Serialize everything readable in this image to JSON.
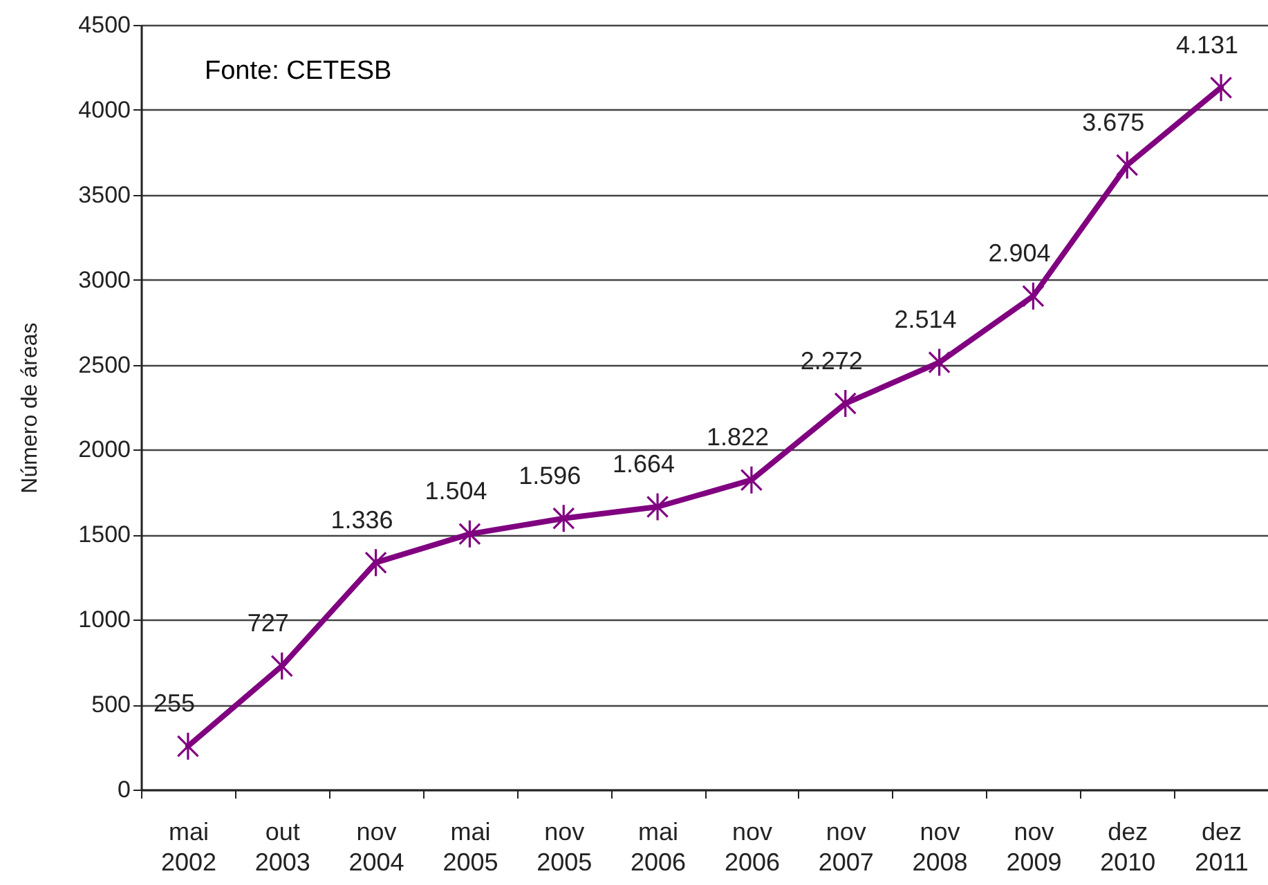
{
  "chart_data": {
    "type": "line",
    "ylabel": "Número de áreas",
    "annotations": [
      "Fonte: CETESB"
    ],
    "categories": [
      "mai 2002",
      "out 2003",
      "nov 2004",
      "mai 2005",
      "nov 2005",
      "mai 2006",
      "nov 2006",
      "nov 2007",
      "nov 2008",
      "nov 2009",
      "dez 2010",
      "dez 2011"
    ],
    "series": [
      {
        "color": "#800080",
        "values": [
          255,
          727,
          1336,
          1504,
          1596,
          1664,
          1822,
          2272,
          2514,
          2904,
          3675,
          4131
        ],
        "value_labels": [
          "255",
          "727",
          "1.336",
          "1.504",
          "1.596",
          "1.664",
          "1.822",
          "2.272",
          "2.514",
          "2.904",
          "3.675",
          "4.131"
        ]
      }
    ],
    "ylim": [
      0,
      4500
    ],
    "yticks": [
      0,
      500,
      1000,
      1500,
      2000,
      2500,
      3000,
      3500,
      4000,
      4500
    ],
    "grid": "y",
    "marker": "cross",
    "line_style": "solid"
  }
}
